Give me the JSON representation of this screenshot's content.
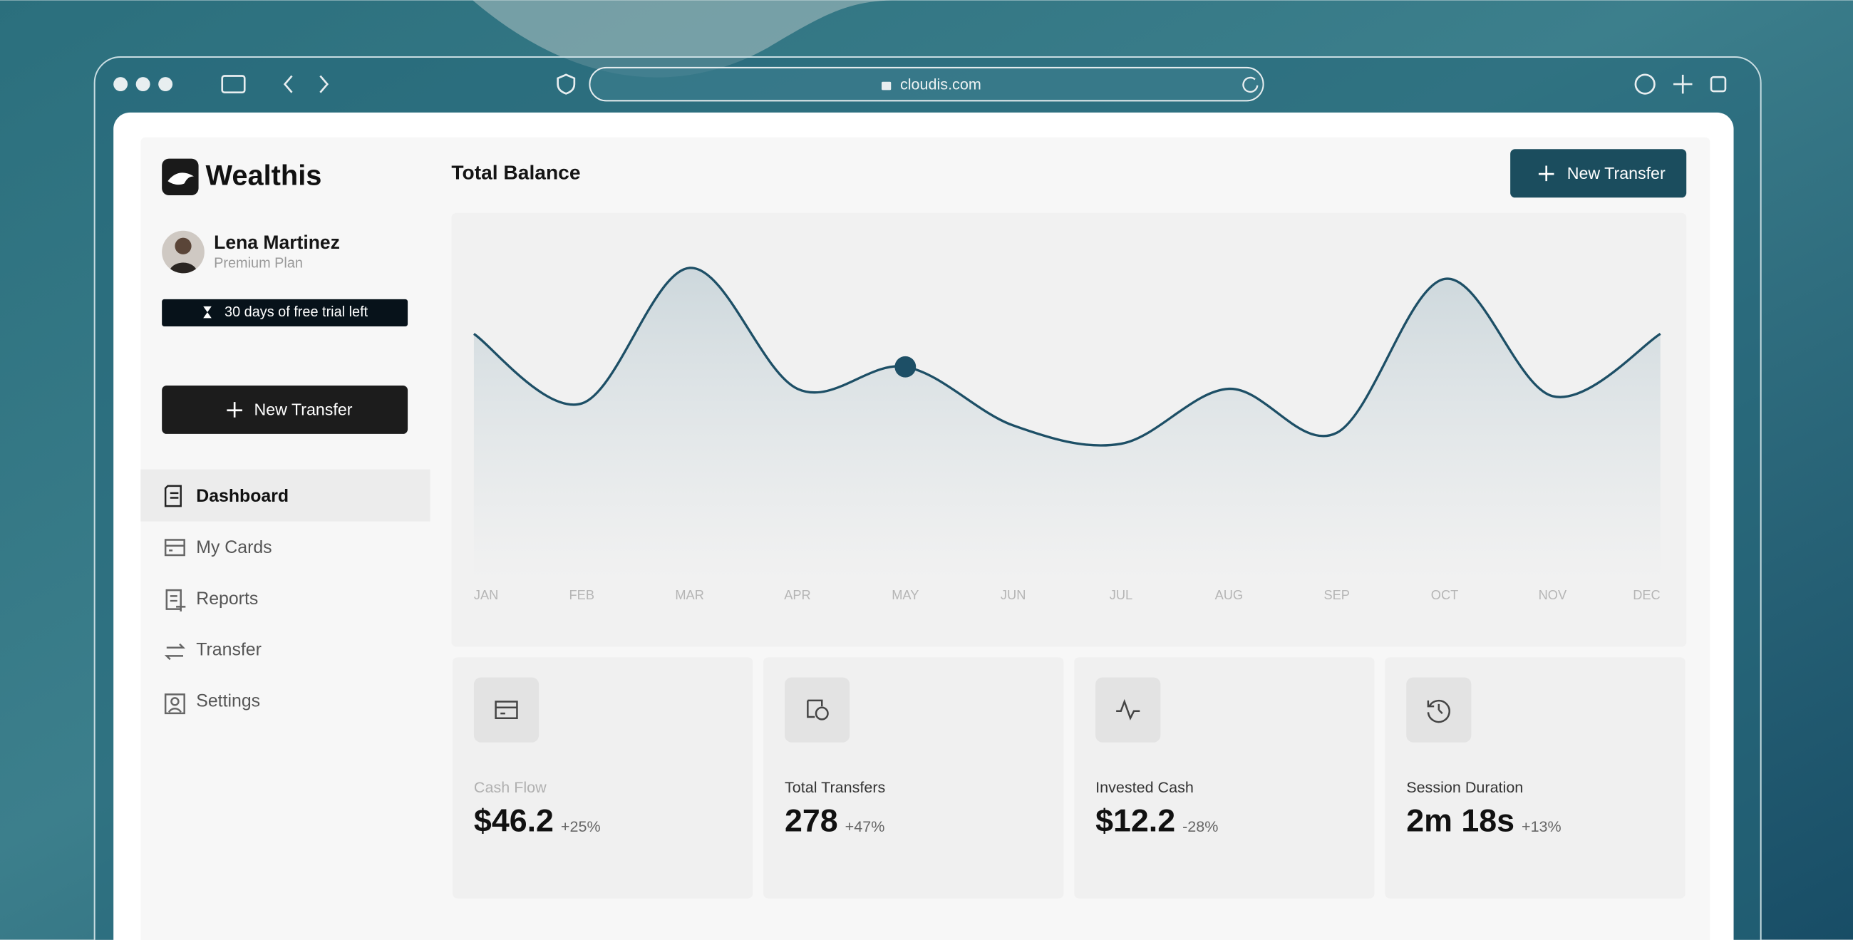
{
  "browser": {
    "url": "cloudis.com"
  },
  "sidebar": {
    "brand": "Wealthis",
    "user": {
      "name": "Lena Martinez",
      "plan": "Premium Plan"
    },
    "trial": "30 days of free trial left",
    "button": "New Transfer",
    "nav": [
      "Dashboard",
      "My Cards",
      "Reports",
      "Transfer",
      "Settings"
    ]
  },
  "header": {
    "title": "Total Balance",
    "button": "New Transfer"
  },
  "chart_data": {
    "type": "area",
    "categories": [
      "JAN",
      "FEB",
      "MAR",
      "APR",
      "MAY",
      "JUN",
      "JUL",
      "AUG",
      "SEP",
      "OCT",
      "NOV",
      "DEC"
    ],
    "values": [
      67,
      48,
      85,
      52,
      58,
      42,
      37,
      52,
      40,
      82,
      50,
      67
    ],
    "ylim": [
      0,
      100
    ],
    "color": "#1d4f66",
    "highlight": "MAY"
  },
  "stats": [
    {
      "label": "Cash Flow",
      "value": "$46.2",
      "change": "+25%"
    },
    {
      "label": "Total Transfers",
      "value": "278",
      "change": "+47%"
    },
    {
      "label": "Invested Cash",
      "value": "$12.2",
      "change": "-28%"
    },
    {
      "label": "Session Duration",
      "value": "2m 18s",
      "change": "+13%"
    }
  ]
}
